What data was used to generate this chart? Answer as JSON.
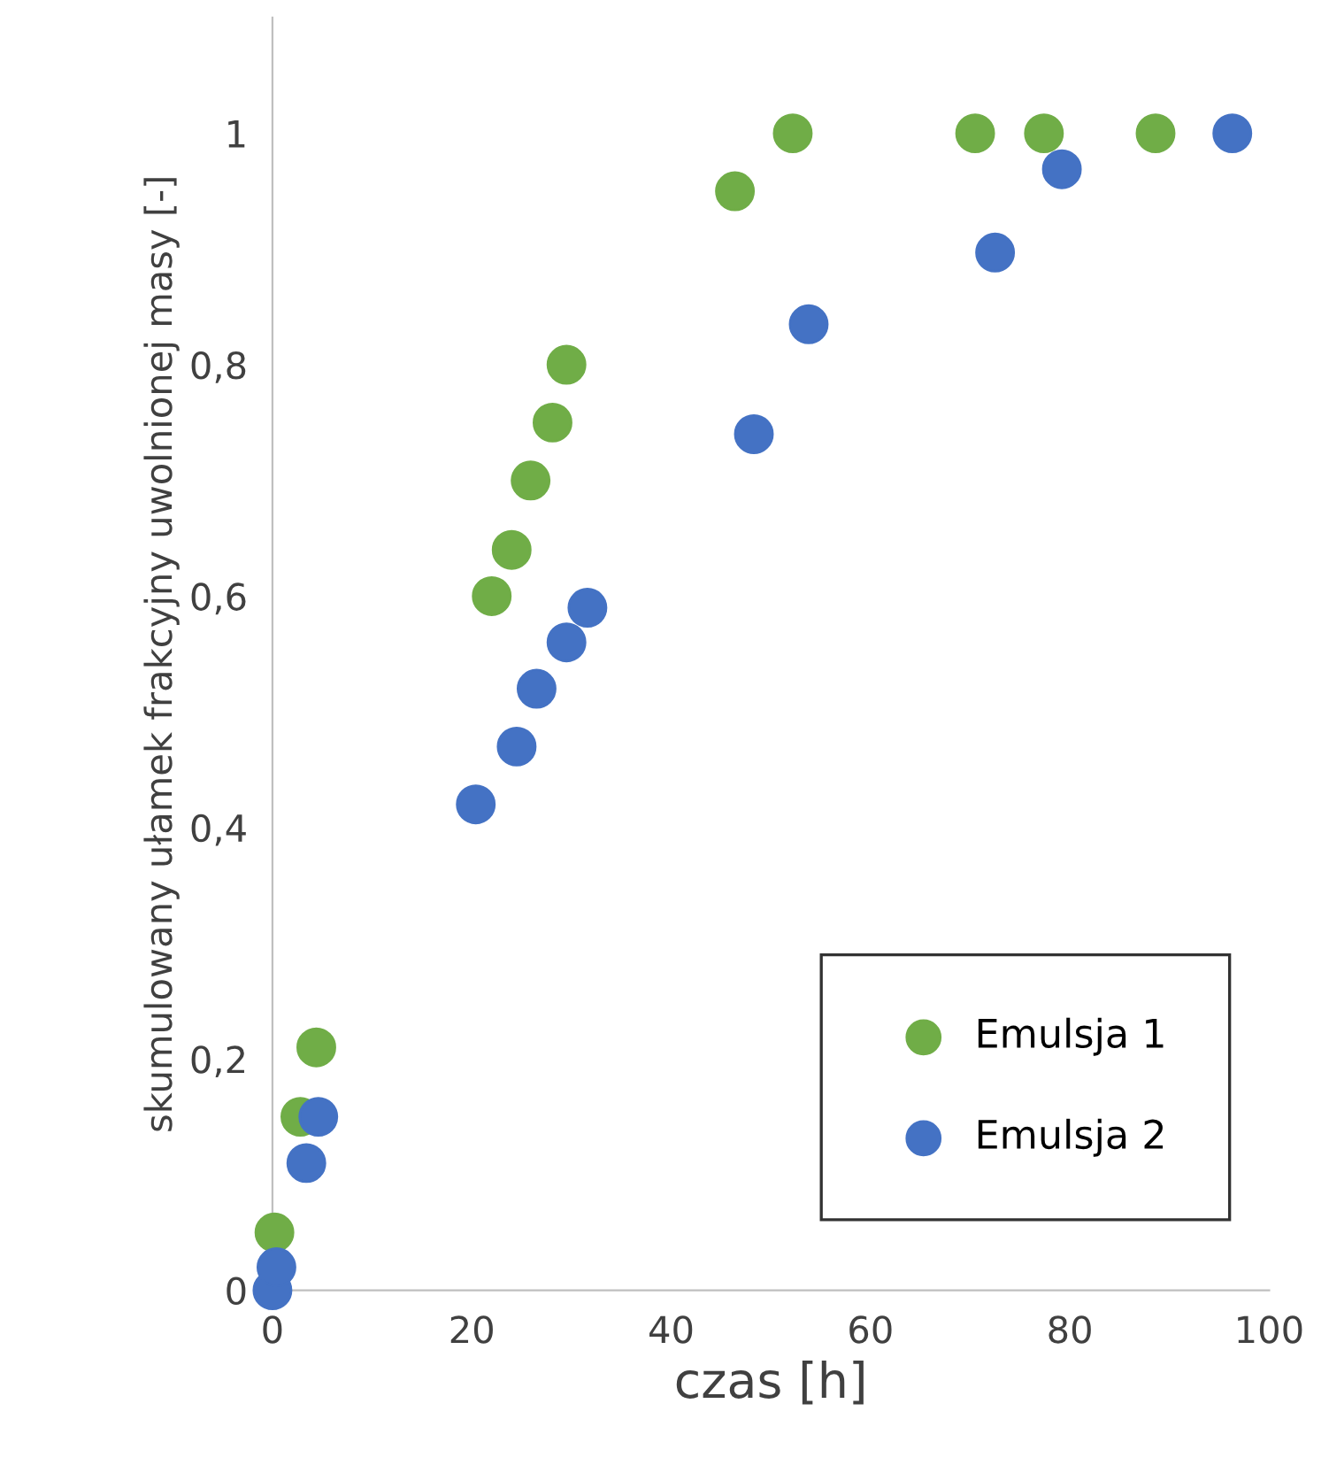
{
  "chart_data": {
    "type": "scatter",
    "xlabel": "czas [h]",
    "ylabel": "skumulowany ułamek frakcyjny uwolnionej masy [-]",
    "xlim": [
      0,
      100
    ],
    "ylim": [
      0,
      1.1
    ],
    "xticks": [
      0,
      20,
      40,
      60,
      80,
      100
    ],
    "yticks": [
      {
        "value": 0,
        "label": "0"
      },
      {
        "value": 0.2,
        "label": "0,2"
      },
      {
        "value": 0.4,
        "label": "0,4"
      },
      {
        "value": 0.6,
        "label": "0,6"
      },
      {
        "value": 0.8,
        "label": "0,8"
      },
      {
        "value": 1,
        "label": "1"
      }
    ],
    "grid": false,
    "legend": "bottom right",
    "marker": "circle",
    "series": [
      {
        "name": "Emulsja 1",
        "color": "#70ad47",
        "x": [
          0.2,
          2.8,
          4.4,
          22,
          24,
          25.9,
          28.1,
          29.5,
          46.4,
          52.2,
          70.5,
          77.4,
          88.6
        ],
        "values": [
          0.05,
          0.15,
          0.21,
          0.6,
          0.64,
          0.7,
          0.75,
          0.8,
          0.95,
          1,
          1,
          1,
          1
        ]
      },
      {
        "name": "Emulsja 2",
        "color": "#4472c4",
        "x": [
          0,
          0.4,
          3.4,
          4.6,
          20.4,
          24.5,
          26.5,
          29.5,
          31.6,
          48.3,
          53.8,
          72.5,
          79.2,
          96.3
        ],
        "values": [
          0,
          0.02,
          0.11,
          0.15,
          0.42,
          0.47,
          0.52,
          0.56,
          0.59,
          0.74,
          0.835,
          0.897,
          0.969,
          1
        ]
      }
    ]
  }
}
